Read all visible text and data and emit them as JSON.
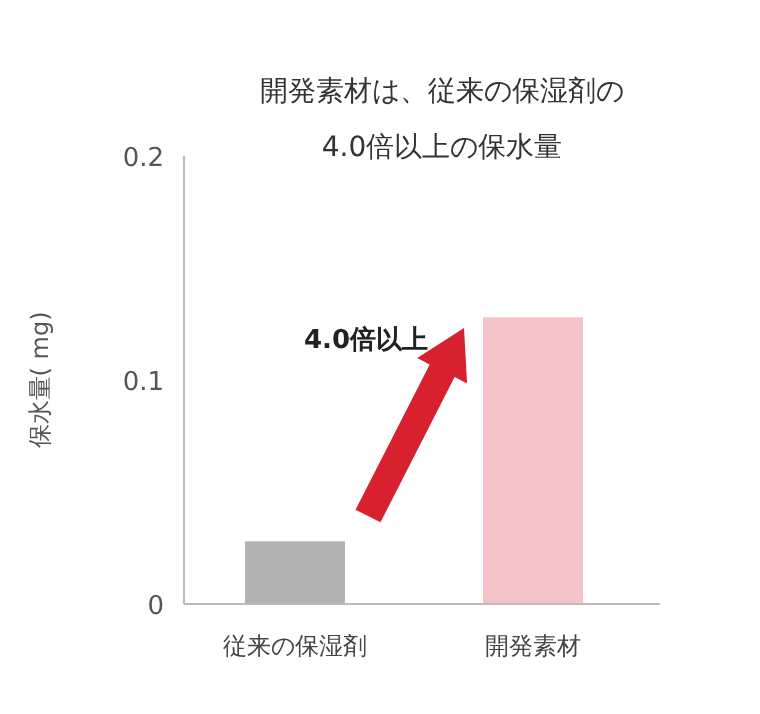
{
  "chart_data": {
    "type": "bar",
    "title": "開発素材は、従来の保湿剤の\n4.0倍以上の保水量",
    "ylabel": "保水量( mg)",
    "categories": [
      "従来の保湿剤",
      "開発素材"
    ],
    "values": [
      0.028,
      0.128
    ],
    "colors": [
      "#b3b3b3",
      "#f4c3c7"
    ],
    "ylim": [
      0,
      0.2
    ],
    "yticks": [
      0,
      0.1,
      0.2
    ],
    "annotations": [
      "4.0倍以上"
    ]
  }
}
